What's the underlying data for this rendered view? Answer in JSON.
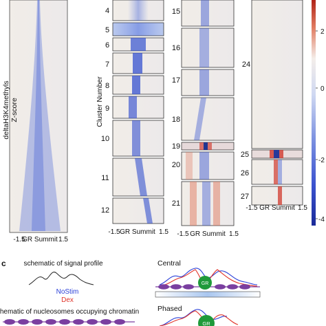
{
  "figure": {
    "panel_label_c": "c",
    "y_axis_label_line1": "deltaH3K4methyls",
    "y_axis_label_line2": "Z-score",
    "cluster_axis_label": "Cluster Number",
    "x_axis": {
      "left": "-1.5",
      "center": "GR Summit",
      "right": "1.5"
    },
    "clusters": {
      "col1": [
        "4",
        "5",
        "6",
        "7",
        "8",
        "9",
        "10",
        "11",
        "12"
      ],
      "col2": [
        "15",
        "16",
        "17",
        "18",
        "19",
        "20",
        "21"
      ],
      "col3": [
        "24",
        "25",
        "26",
        "27"
      ]
    },
    "colorbar_ticks": [
      "2",
      "0",
      "-2",
      "-4"
    ],
    "schematics": {
      "signal_title": "schematic of signal profile",
      "nostim": "NoStim",
      "dex": "Dex",
      "nucleosome_title": "schematic of nucleosomes occupying chromatin",
      "central": "Central",
      "phased": "Phased",
      "gr": "GR"
    },
    "colors": {
      "nostim": "#2a3fd8",
      "dex": "#e0342a",
      "nucleosome": "#7a3fa0",
      "gr": "#1f9a3a"
    }
  }
}
